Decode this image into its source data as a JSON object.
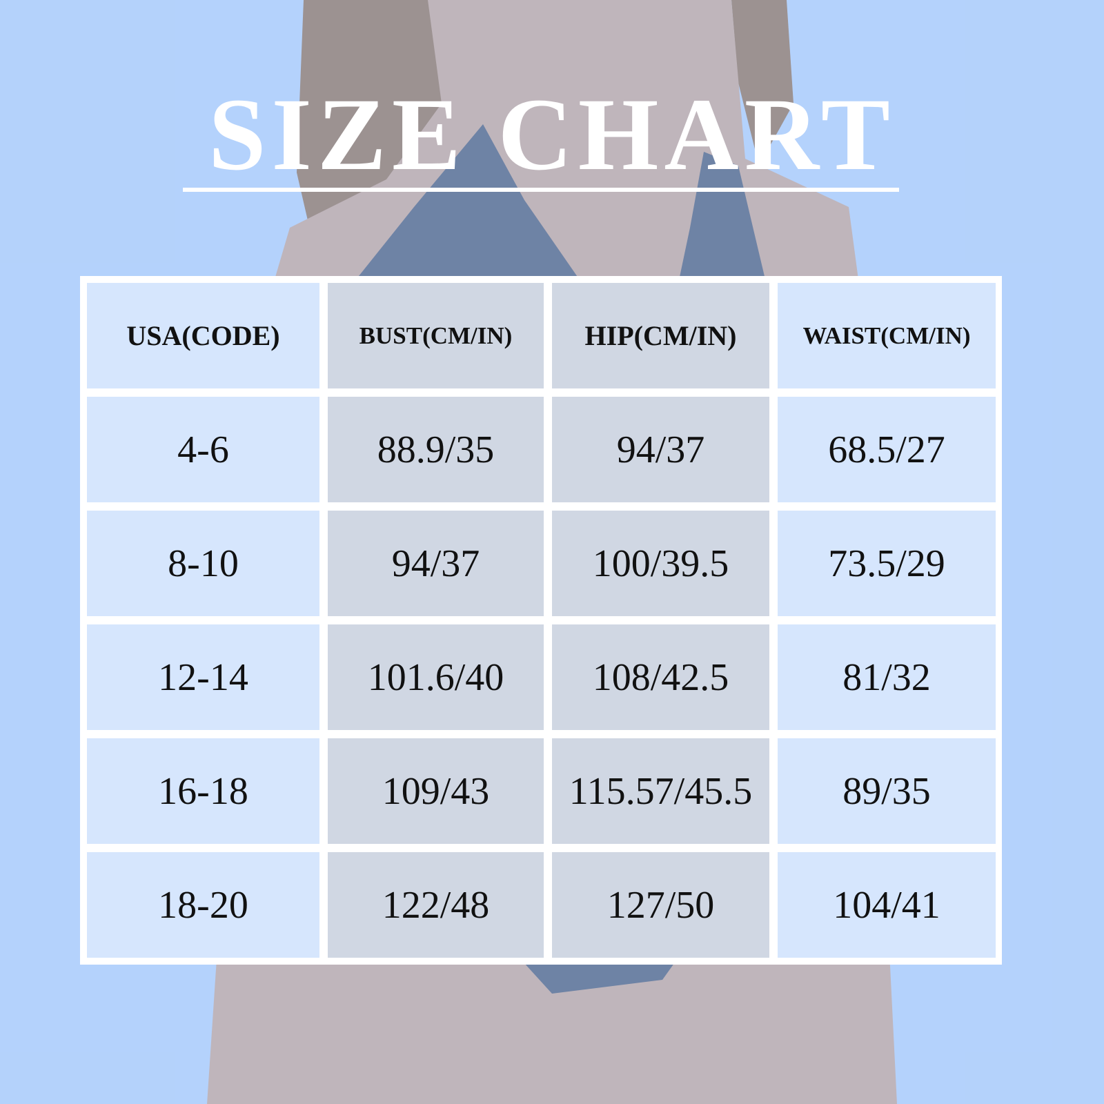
{
  "title": "SIZE CHART",
  "colors": {
    "background": "#b4d2fb",
    "title": "#ffffff",
    "grid": "#ffffff",
    "text": "#111111",
    "swimsuit": "#3c4a66"
  },
  "table": {
    "headers": [
      "USA(CODE)",
      "BUST(CM/IN)",
      "HIP(CM/IN)",
      "WAIST(CM/IN)"
    ],
    "rows": [
      [
        "4-6",
        "88.9/35",
        "94/37",
        "68.5/27"
      ],
      [
        "8-10",
        "94/37",
        "100/39.5",
        "73.5/29"
      ],
      [
        "12-14",
        "101.6/40",
        "108/42.5",
        "81/32"
      ],
      [
        "16-18",
        "109/43",
        "115.57/45.5",
        "89/35"
      ],
      [
        "18-20",
        "122/48",
        "127/50",
        "104/41"
      ]
    ]
  }
}
